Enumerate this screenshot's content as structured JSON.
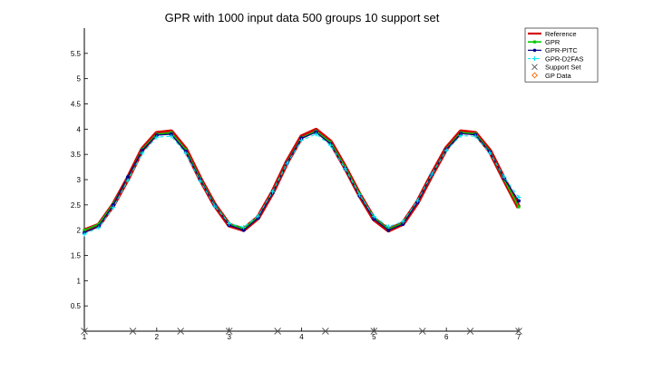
{
  "chart_data": {
    "type": "line",
    "title": "GPR with 1000 input data 500 groups 10 support set",
    "xlabel": "",
    "ylabel": "",
    "xlim": [
      1,
      7
    ],
    "ylim": [
      0,
      6
    ],
    "x_ticks": [
      1,
      2,
      3,
      4,
      5,
      6,
      7
    ],
    "y_ticks": [
      0.5,
      1,
      1.5,
      2,
      2.5,
      3,
      3.5,
      4,
      4.5,
      5,
      5.5
    ],
    "x_tick_labels": [
      "1",
      "2",
      "3",
      "4",
      "5",
      "6",
      "7"
    ],
    "y_tick_labels": [
      "0.5",
      "1",
      "1.5",
      "2",
      "2.5",
      "3",
      "3.5",
      "4",
      "4.5",
      "5",
      "5.5"
    ],
    "grid": false,
    "legend_position": "top-right",
    "x": [
      1.0,
      1.2,
      1.4,
      1.6,
      1.8,
      2.0,
      2.2,
      2.4,
      2.6,
      2.8,
      3.0,
      3.2,
      3.4,
      3.6,
      3.8,
      4.0,
      4.2,
      4.4,
      4.6,
      4.8,
      5.0,
      5.2,
      5.4,
      5.6,
      5.8,
      6.0,
      6.2,
      6.4,
      6.6,
      6.8,
      7.0
    ],
    "series": [
      {
        "name": "Reference",
        "color": "#d40000",
        "values": [
          1.99,
          2.1,
          2.5,
          3.02,
          3.6,
          3.92,
          3.95,
          3.6,
          3.02,
          2.5,
          2.1,
          2.01,
          2.25,
          2.75,
          3.35,
          3.85,
          3.98,
          3.75,
          3.25,
          2.7,
          2.22,
          2.0,
          2.13,
          2.55,
          3.1,
          3.62,
          3.95,
          3.92,
          3.57,
          3.0,
          2.45
        ]
      },
      {
        "name": "GPR",
        "color": "#00cc00",
        "values": [
          2.0,
          2.12,
          2.52,
          3.03,
          3.6,
          3.9,
          3.93,
          3.59,
          3.02,
          2.51,
          2.12,
          2.03,
          2.26,
          2.75,
          3.34,
          3.83,
          3.96,
          3.74,
          3.25,
          2.71,
          2.24,
          2.02,
          2.14,
          2.56,
          3.1,
          3.61,
          3.93,
          3.91,
          3.56,
          3.0,
          2.46
        ]
      },
      {
        "name": "GPR-PITC",
        "color": "#00008b",
        "values": [
          1.95,
          2.08,
          2.5,
          3.05,
          3.58,
          3.88,
          3.9,
          3.56,
          3.0,
          2.5,
          2.1,
          2.0,
          2.24,
          2.74,
          3.33,
          3.82,
          3.94,
          3.71,
          3.22,
          2.68,
          2.22,
          2.0,
          2.12,
          2.55,
          3.1,
          3.6,
          3.91,
          3.89,
          3.55,
          3.02,
          2.58
        ]
      },
      {
        "name": "GPR-D2FAS",
        "color": "#00e5ee",
        "values": [
          1.92,
          2.05,
          2.45,
          2.98,
          3.52,
          3.84,
          3.86,
          3.52,
          2.98,
          2.48,
          2.13,
          2.06,
          2.28,
          2.76,
          3.32,
          3.78,
          3.9,
          3.68,
          3.22,
          2.7,
          2.27,
          2.07,
          2.17,
          2.58,
          3.11,
          3.58,
          3.87,
          3.86,
          3.53,
          3.05,
          2.65
        ]
      }
    ],
    "support_set": {
      "name": "Support Set",
      "color": "#555555",
      "x": [
        1.0,
        1.67,
        2.33,
        3.0,
        3.67,
        4.33,
        5.0,
        5.67,
        6.33,
        7.0
      ],
      "y": [
        0,
        0,
        0,
        0,
        0,
        0,
        0,
        0,
        0,
        0
      ]
    },
    "gp_data": {
      "name": "GP Data",
      "color": "#ff6600"
    }
  }
}
